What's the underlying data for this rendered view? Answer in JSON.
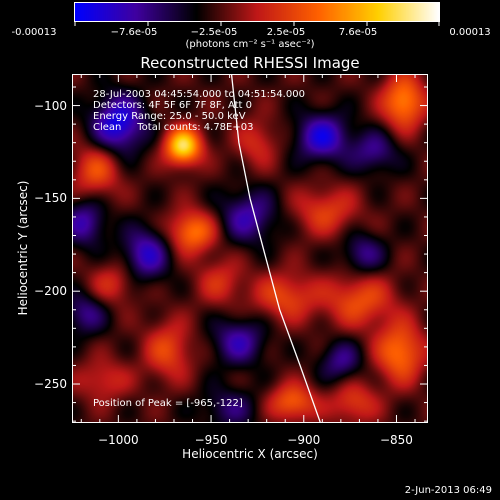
{
  "colorbar": {
    "tick_labels": [
      "-0.00013",
      "−7.6e-05",
      "−2.5e-05",
      "2.5e-05",
      "7.6e-05",
      "0.00013"
    ],
    "units": "(photons cm⁻² s⁻¹ asec⁻²)",
    "colors": [
      "#0000ff",
      "#4000a0",
      "#000000",
      "#c01818",
      "#ff6000",
      "#ffd000",
      "#ffffff"
    ]
  },
  "plot": {
    "title": "Reconstructed RHESSI Image",
    "info_line1": "28-Jul-2003 04:45:54.000 to 04:51:54.000",
    "info_line2": "Detectors: 4F 5F 6F 7F 8F, Att 0",
    "info_line3": "Energy Range: 25.0 - 50.0 keV",
    "info_line4": "Clean     Total counts: 4.78E+03",
    "peak_text": "Position of Peak = [-965,-122]"
  },
  "timestamp": "2-Jun-2013 06:49",
  "chart_data": {
    "type": "heatmap",
    "title": "Reconstructed RHESSI Image",
    "xlabel": "Heliocentric X (arcsec)",
    "ylabel": "Heliocentric Y (arcsec)",
    "xlim": [
      -1025,
      -833
    ],
    "ylim": [
      -271,
      -83
    ],
    "x_ticks": [
      -1000,
      -950,
      -900,
      -850
    ],
    "y_ticks": [
      -100,
      -150,
      -200,
      -250
    ],
    "x_tick_labels": [
      "−1000",
      "−950",
      "−900",
      "−850"
    ],
    "y_tick_labels": [
      "−100",
      "−150",
      "−200",
      "−250"
    ],
    "value_range": [
      -0.00013,
      0.00013
    ],
    "peak": {
      "x": -965,
      "y": -122
    },
    "sources": [
      {
        "x": -965,
        "y": -122,
        "flux": 0.00013,
        "sx": 7,
        "sy": 7
      },
      {
        "x": -960,
        "y": -168,
        "flux": 8.2e-05,
        "sx": 9,
        "sy": 8
      },
      {
        "x": -1012,
        "y": -135,
        "flux": 6e-05,
        "sx": 9,
        "sy": 10
      },
      {
        "x": -925,
        "y": -120,
        "flux": 4e-05,
        "sx": 8,
        "sy": 9
      },
      {
        "x": -888,
        "y": -157,
        "flux": 5e-05,
        "sx": 12,
        "sy": 9
      },
      {
        "x": -846,
        "y": -98,
        "flux": 9e-05,
        "sx": 8,
        "sy": 10
      },
      {
        "x": -870,
        "y": -205,
        "flux": 6e-05,
        "sx": 13,
        "sy": 10
      },
      {
        "x": -910,
        "y": -203,
        "flux": 5.5e-05,
        "sx": 12,
        "sy": 9
      },
      {
        "x": -1003,
        "y": -196,
        "flux": 4e-05,
        "sx": 9,
        "sy": 8
      },
      {
        "x": -973,
        "y": -232,
        "flux": 5.5e-05,
        "sx": 9,
        "sy": 11
      },
      {
        "x": -906,
        "y": -260,
        "flux": 7e-05,
        "sx": 9,
        "sy": 7
      },
      {
        "x": -848,
        "y": -233,
        "flux": 8e-05,
        "sx": 9,
        "sy": 11
      },
      {
        "x": -945,
        "y": -195,
        "flux": 4e-05,
        "sx": 9,
        "sy": 9
      },
      {
        "x": -1008,
        "y": -248,
        "flux": 4e-05,
        "sx": 10,
        "sy": 8
      },
      {
        "x": -873,
        "y": -260,
        "flux": 5e-05,
        "sx": 9,
        "sy": 8
      },
      {
        "x": -1000,
        "y": -110,
        "flux": -9e-05,
        "sx": 10,
        "sy": 11
      },
      {
        "x": -890,
        "y": -117,
        "flux": -8e-05,
        "sx": 10,
        "sy": 9
      },
      {
        "x": -930,
        "y": -160,
        "flux": -6e-05,
        "sx": 11,
        "sy": 10
      },
      {
        "x": -1018,
        "y": -163,
        "flux": -6e-05,
        "sx": 8,
        "sy": 9
      },
      {
        "x": -985,
        "y": -180,
        "flux": -7e-05,
        "sx": 9,
        "sy": 10
      },
      {
        "x": -935,
        "y": -227,
        "flux": -6e-05,
        "sx": 10,
        "sy": 9
      },
      {
        "x": -880,
        "y": -238,
        "flux": -5e-05,
        "sx": 8,
        "sy": 8
      },
      {
        "x": -862,
        "y": -125,
        "flux": -5e-05,
        "sx": 9,
        "sy": 8
      },
      {
        "x": -1018,
        "y": -212,
        "flux": -5e-05,
        "sx": 8,
        "sy": 8
      },
      {
        "x": -940,
        "y": -263,
        "flux": -4e-05,
        "sx": 11,
        "sy": 8
      },
      {
        "x": -868,
        "y": -180,
        "flux": -5e-05,
        "sx": 8,
        "sy": 8
      }
    ],
    "limb": [
      [
        -939,
        -83
      ],
      [
        -935,
        -120
      ],
      [
        -929,
        -150
      ],
      [
        -921,
        -180
      ],
      [
        -913,
        -210
      ],
      [
        -902,
        -240
      ],
      [
        -891,
        -271
      ]
    ]
  }
}
